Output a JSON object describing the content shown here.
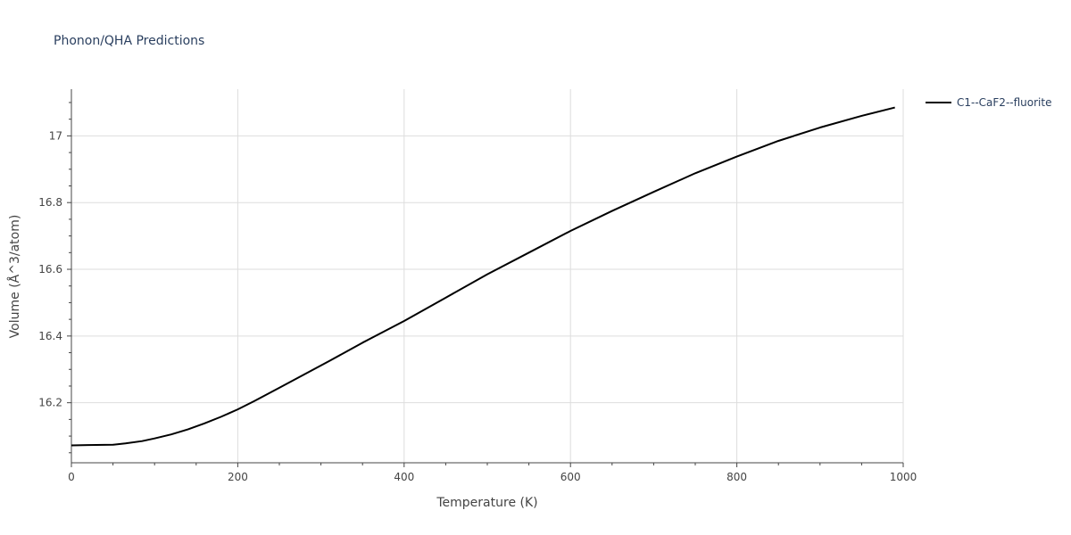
{
  "chart_data": {
    "type": "line",
    "title": "Phonon/QHA Predictions",
    "xlabel": "Temperature (K)",
    "ylabel": "Volume (Å^3/atom)",
    "xlim": [
      0,
      1000
    ],
    "ylim": [
      16.02,
      17.14
    ],
    "x_ticks": [
      0,
      200,
      400,
      600,
      800,
      1000
    ],
    "y_ticks": [
      16.2,
      16.4,
      16.6,
      16.8,
      17
    ],
    "x_tick_labels": [
      "0",
      "200",
      "400",
      "600",
      "800",
      "1000"
    ],
    "y_tick_labels": [
      "16.2",
      "16.4",
      "16.6",
      "16.8",
      "17"
    ],
    "grid": true,
    "legend": {
      "position": "top-right"
    },
    "series": [
      {
        "name": "C1--CaF2--fluorite",
        "color": "#000000",
        "x": [
          0,
          20,
          50,
          65,
          85,
          100,
          120,
          140,
          160,
          180,
          200,
          220,
          250,
          280,
          310,
          350,
          400,
          450,
          500,
          550,
          600,
          650,
          700,
          750,
          800,
          850,
          900,
          950,
          990
        ],
        "y": [
          16.072,
          16.073,
          16.074,
          16.078,
          16.085,
          16.093,
          16.105,
          16.12,
          16.138,
          16.158,
          16.18,
          16.205,
          16.245,
          16.285,
          16.325,
          16.38,
          16.445,
          16.515,
          16.585,
          16.65,
          16.715,
          16.775,
          16.832,
          16.888,
          16.938,
          16.985,
          17.025,
          17.06,
          17.085
        ]
      }
    ]
  }
}
